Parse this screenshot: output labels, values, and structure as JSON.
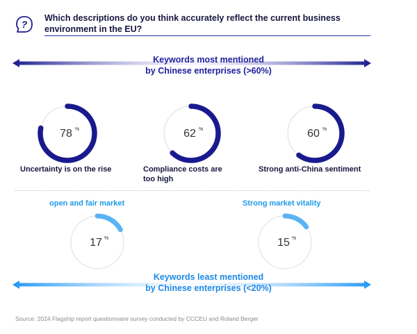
{
  "header": {
    "question": "Which descriptions do you think accurately reflect the current business environment in the EU?",
    "icon": "question-icon"
  },
  "colors": {
    "dark_blue": "#1a1a8f",
    "light_blue": "#5ab3f5",
    "track": "#e2e2e2"
  },
  "chart_data": {
    "type": "donut",
    "groups": [
      {
        "title_line1": "Keywords most mentioned",
        "title_line2": "by Chinese enterprises (>60%)",
        "items": [
          {
            "label_line1": "Uncertainty is on the rise",
            "label_line2": "",
            "value": 78,
            "value_text": "78",
            "unit": "%"
          },
          {
            "label_line1": "Compliance costs are",
            "label_line2": "too high",
            "value": 62,
            "value_text": "62",
            "unit": "%"
          },
          {
            "label_line1": "Strong anti-China sentiment",
            "label_line2": "",
            "value": 60,
            "value_text": "60",
            "unit": "%"
          }
        ]
      },
      {
        "title_line1": "Keywords least mentioned",
        "title_line2": "by Chinese enterprises (<20%)",
        "items": [
          {
            "label_line1": "open and fair market",
            "label_line2": "",
            "value": 17,
            "value_text": "17",
            "unit": "%"
          },
          {
            "label_line1": "Strong market vitality",
            "label_line2": "",
            "value": 15,
            "value_text": "15",
            "unit": "%"
          }
        ]
      }
    ]
  },
  "footer": {
    "source": "Source: 2024 Flagship report questionnaire survey conducted by CCCEU and Roland Berger"
  }
}
